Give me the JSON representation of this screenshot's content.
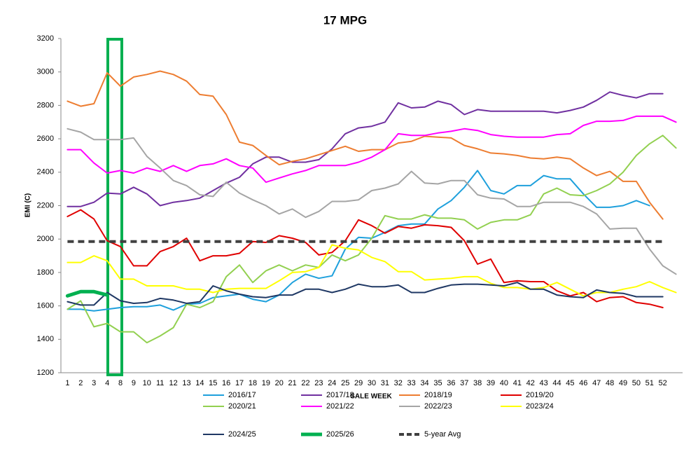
{
  "chart_data": {
    "type": "line",
    "title": "17 MPG",
    "x_label": "SALE WEEK",
    "y_label": "EMI (C)",
    "categories": [
      "1",
      "2",
      "3",
      "4",
      "8",
      "9",
      "10",
      "11",
      "12",
      "13",
      "14",
      "15",
      "16",
      "17",
      "18",
      "19",
      "20",
      "21",
      "22",
      "23",
      "24",
      "25",
      "29",
      "30",
      "31",
      "32",
      "33",
      "34",
      "35",
      "36",
      "37",
      "38",
      "39",
      "40",
      "41",
      "42",
      "43",
      "44",
      "45",
      "46",
      "47",
      "48",
      "49",
      "50",
      "51",
      "52",
      null
    ],
    "ylim": [
      1200,
      3200
    ],
    "yticks": [
      1200,
      1400,
      1600,
      1800,
      2000,
      2200,
      2400,
      2600,
      2800,
      3000,
      3200
    ],
    "grid": false,
    "legend": "bottom",
    "series": [
      {
        "name": "2016/17",
        "color": "#1ea0dc",
        "line_width": 2,
        "values": [
          1580,
          1580,
          1570,
          1580,
          1590,
          1595,
          1595,
          1605,
          1575,
          1610,
          1615,
          1650,
          1660,
          1670,
          1640,
          1625,
          1665,
          1740,
          1790,
          1765,
          1780,
          1940,
          2010,
          2005,
          2040,
          2080,
          2090,
          2090,
          2180,
          2230,
          2310,
          2410,
          2290,
          2270,
          2320,
          2320,
          2380,
          2360,
          2360,
          2270,
          2190,
          2190,
          2200,
          2230,
          2200,
          null,
          null
        ]
      },
      {
        "name": "2017/18",
        "color": "#7030a0",
        "line_width": 2,
        "values": [
          2195,
          2195,
          2220,
          2275,
          2270,
          2310,
          2270,
          2200,
          2220,
          2230,
          2245,
          2290,
          2335,
          2370,
          2450,
          2490,
          2490,
          2460,
          2460,
          2475,
          2540,
          2630,
          2665,
          2675,
          2700,
          2815,
          2785,
          2790,
          2825,
          2805,
          2745,
          2775,
          2765,
          2765,
          2765,
          2765,
          2765,
          2755,
          2770,
          2790,
          2830,
          2880,
          2860,
          2845,
          2870,
          2870,
          null
        ]
      },
      {
        "name": "2018/19",
        "color": "#ed7d31",
        "line_width": 2,
        "values": [
          2825,
          2795,
          2810,
          2995,
          2915,
          2970,
          2985,
          3005,
          2985,
          2945,
          2865,
          2855,
          2745,
          2580,
          2560,
          2500,
          2445,
          2465,
          2480,
          2505,
          2530,
          2555,
          2525,
          2535,
          2535,
          2575,
          2585,
          2615,
          2610,
          2605,
          2560,
          2540,
          2515,
          2510,
          2500,
          2485,
          2480,
          2490,
          2480,
          2425,
          2380,
          2405,
          2345,
          2345,
          2220,
          2120,
          null
        ]
      },
      {
        "name": "2019/20",
        "color": "#e00000",
        "line_width": 2,
        "values": [
          2135,
          2175,
          2120,
          1990,
          1955,
          1840,
          1840,
          1925,
          1955,
          2005,
          1870,
          1900,
          1900,
          1915,
          1985,
          1980,
          2020,
          2005,
          1980,
          1905,
          1920,
          1990,
          2115,
          2080,
          2035,
          2075,
          2065,
          2085,
          2080,
          2070,
          1990,
          1850,
          1880,
          1740,
          1750,
          1745,
          1745,
          1690,
          1660,
          1680,
          1625,
          1650,
          1655,
          1620,
          1610,
          1590,
          null
        ]
      },
      {
        "name": "2020/21",
        "color": "#92d050",
        "line_width": 2,
        "values": [
          1580,
          1630,
          1475,
          1495,
          1445,
          1445,
          1380,
          1420,
          1470,
          1610,
          1590,
          1625,
          1775,
          1845,
          1740,
          1810,
          1845,
          1810,
          1845,
          1830,
          1905,
          1870,
          1905,
          2005,
          2140,
          2120,
          2120,
          2145,
          2125,
          2125,
          2115,
          2060,
          2100,
          2115,
          2115,
          2145,
          2270,
          2305,
          2265,
          2260,
          2290,
          2330,
          2400,
          2500,
          2570,
          2620,
          2545
        ]
      },
      {
        "name": "2021/22",
        "color": "#ff00ff",
        "line_width": 2,
        "values": [
          2535,
          2535,
          2455,
          2395,
          2410,
          2395,
          2425,
          2405,
          2440,
          2405,
          2440,
          2450,
          2480,
          2440,
          2425,
          2340,
          2365,
          2390,
          2410,
          2440,
          2440,
          2440,
          2460,
          2490,
          2535,
          2630,
          2620,
          2620,
          2635,
          2645,
          2660,
          2650,
          2625,
          2615,
          2610,
          2610,
          2610,
          2625,
          2630,
          2680,
          2705,
          2705,
          2710,
          2735,
          2735,
          2735,
          2700
        ]
      },
      {
        "name": "2022/23",
        "color": "#a5a5a5",
        "line_width": 2,
        "values": [
          2660,
          2640,
          2595,
          2595,
          2595,
          2605,
          2495,
          2425,
          2350,
          2320,
          2265,
          2255,
          2340,
          2275,
          2235,
          2200,
          2150,
          2180,
          2130,
          2165,
          2225,
          2225,
          2235,
          2290,
          2305,
          2330,
          2405,
          2335,
          2330,
          2350,
          2350,
          2265,
          2245,
          2240,
          2195,
          2195,
          2220,
          2220,
          2220,
          2195,
          2150,
          2060,
          2065,
          2065,
          1940,
          1840,
          1790
        ]
      },
      {
        "name": "2023/24",
        "color": "#ffff00",
        "line_width": 2,
        "values": [
          1860,
          1860,
          1900,
          1870,
          1760,
          1760,
          1720,
          1720,
          1720,
          1700,
          1700,
          1680,
          1700,
          1705,
          1705,
          1705,
          1750,
          1800,
          1805,
          1830,
          1965,
          1945,
          1935,
          1890,
          1865,
          1805,
          1805,
          1755,
          1760,
          1765,
          1775,
          1775,
          1735,
          1710,
          1710,
          1700,
          1710,
          1740,
          1700,
          1660,
          1680,
          1680,
          1700,
          1715,
          1745,
          1710,
          1680
        ]
      },
      {
        "name": "2024/25",
        "color": "#1f3864",
        "line_width": 2,
        "values": [
          1625,
          1605,
          1605,
          1680,
          1630,
          1615,
          1620,
          1645,
          1635,
          1615,
          1625,
          1720,
          1690,
          1670,
          1655,
          1650,
          1665,
          1665,
          1700,
          1700,
          1680,
          1700,
          1730,
          1715,
          1715,
          1725,
          1680,
          1680,
          1705,
          1725,
          1730,
          1730,
          1725,
          1720,
          1740,
          1700,
          1700,
          1665,
          1655,
          1650,
          1695,
          1680,
          1675,
          1655,
          1655,
          1655,
          null
        ]
      },
      {
        "name": "2025/26",
        "color": "#00b050",
        "line_width": 5,
        "values": [
          1660,
          1685,
          1685,
          1665,
          null,
          null,
          null,
          null,
          null,
          null,
          null,
          null,
          null,
          null,
          null,
          null,
          null,
          null,
          null,
          null,
          null,
          null,
          null,
          null,
          null,
          null,
          null,
          null,
          null,
          null,
          null,
          null,
          null,
          null,
          null,
          null,
          null,
          null,
          null,
          null,
          null,
          null,
          null,
          null,
          null,
          null,
          null
        ]
      },
      {
        "name": "5-year Avg",
        "color": "#404040",
        "line_width": 4,
        "dashed": true,
        "values": [
          1985,
          1985,
          1985,
          1985,
          1985,
          1985,
          1985,
          1985,
          1985,
          1985,
          1985,
          1985,
          1985,
          1985,
          1985,
          1985,
          1985,
          1985,
          1985,
          1985,
          1985,
          1985,
          1985,
          1985,
          1985,
          1985,
          1985,
          1985,
          1985,
          1985,
          1985,
          1985,
          1985,
          1985,
          1985,
          1985,
          1985,
          1985,
          1985,
          1985,
          1985,
          1985,
          1985,
          1985,
          1985,
          1985,
          null
        ]
      }
    ]
  }
}
